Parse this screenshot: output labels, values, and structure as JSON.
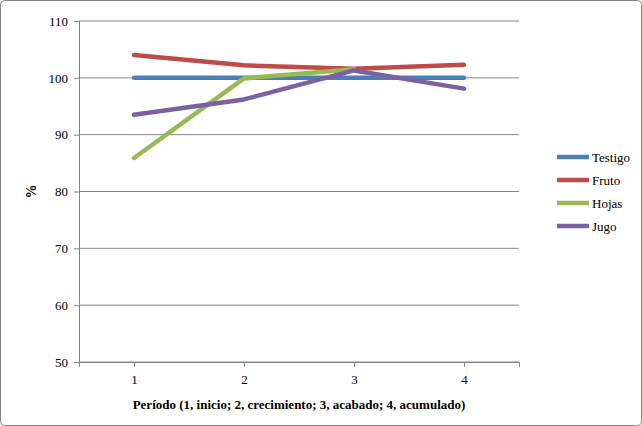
{
  "chart_data": {
    "type": "line",
    "x_label": "Período (1, inicio; 2, crecimiento; 3, acabado; 4, acumulado)",
    "y_label": "%",
    "categories": [
      "1",
      "2",
      "3",
      "4"
    ],
    "series": [
      {
        "name": "Testigo",
        "color": "#4a7ebb",
        "values": [
          100,
          100,
          100,
          100
        ]
      },
      {
        "name": "Fruto",
        "color": "#be4b48",
        "values": [
          104,
          102.2,
          101.6,
          102.3
        ]
      },
      {
        "name": "Hojas",
        "color": "#98b954",
        "values": [
          85.9,
          99.9,
          101.5,
          null
        ]
      },
      {
        "name": "Jugo",
        "color": "#7d60a0",
        "values": [
          93.5,
          96.2,
          101.3,
          98.1
        ]
      }
    ],
    "ylim": [
      50,
      110
    ],
    "yticks": [
      50,
      60,
      70,
      80,
      90,
      100,
      110
    ],
    "grid": true,
    "legend": "right"
  }
}
